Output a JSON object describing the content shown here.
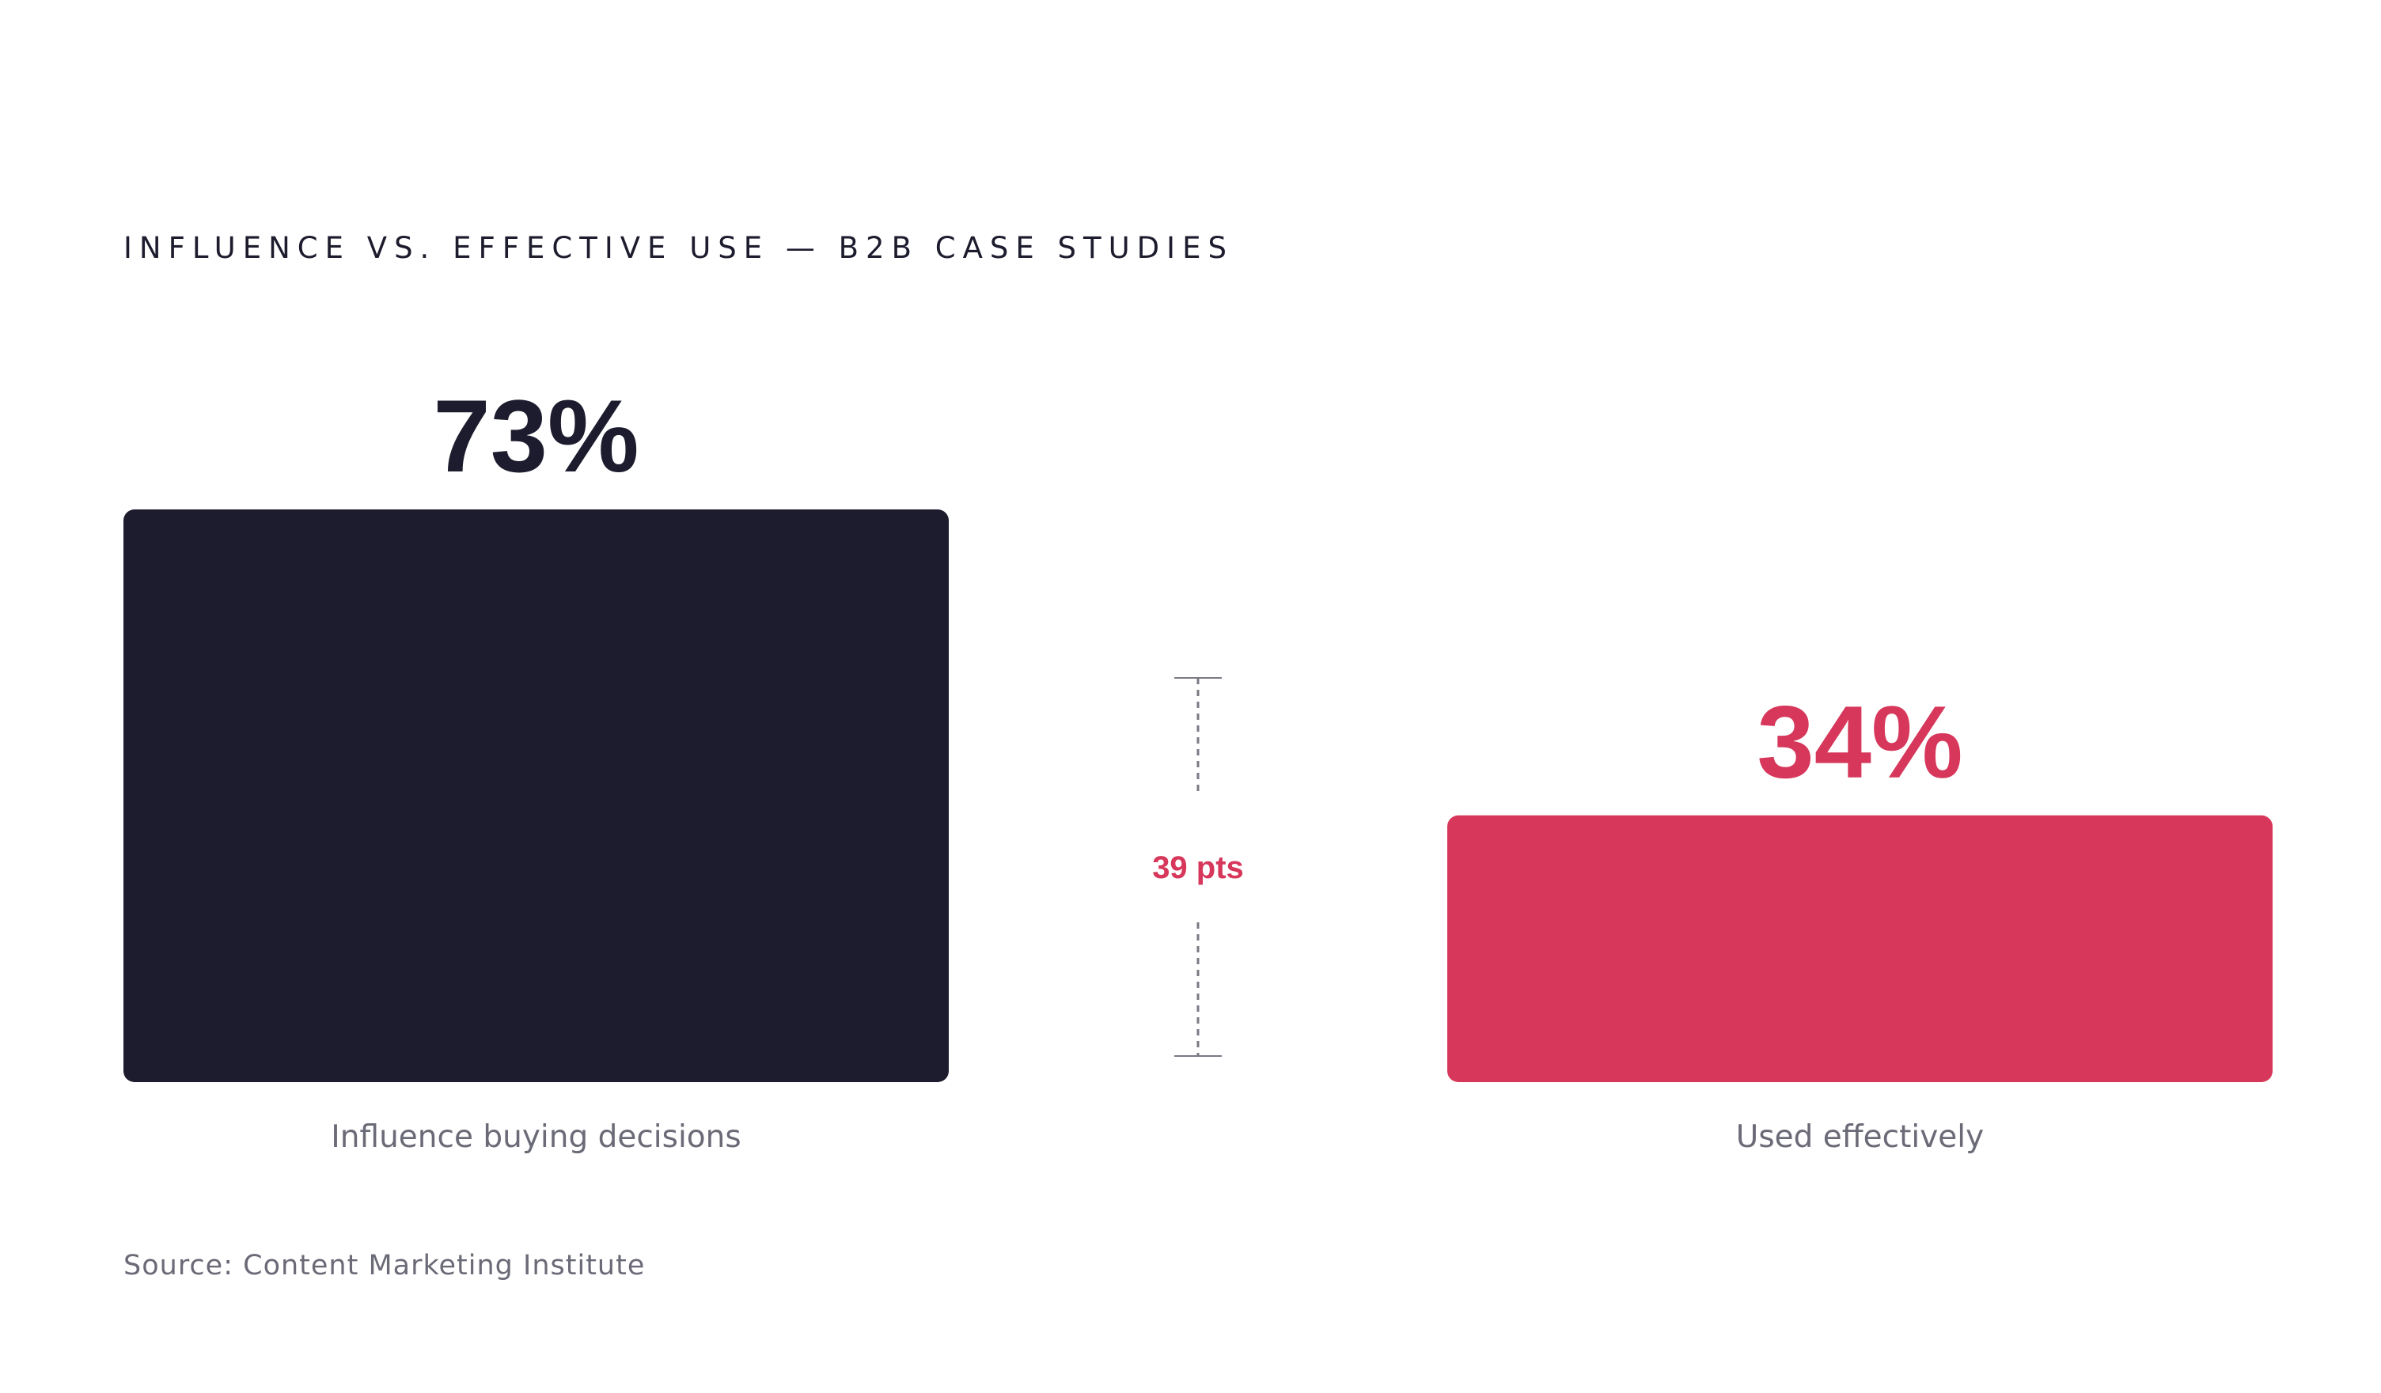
{
  "chart_data": {
    "type": "bar",
    "title": "INFLUENCE VS. EFFECTIVE USE — B2B CASE STUDIES",
    "categories": [
      "Influence buying decisions",
      "Used effectively"
    ],
    "values": [
      73,
      34
    ],
    "value_labels": [
      "73%",
      "34%"
    ],
    "colors": [
      "#1c1c2e",
      "#d6375a"
    ],
    "unit": "%",
    "ylim": [
      0,
      73
    ],
    "grid": false,
    "annotation": {
      "label": "39 pts",
      "from": 34,
      "to": 73,
      "color": "#d6375a"
    }
  },
  "source": "Source: Content Marketing Institute"
}
